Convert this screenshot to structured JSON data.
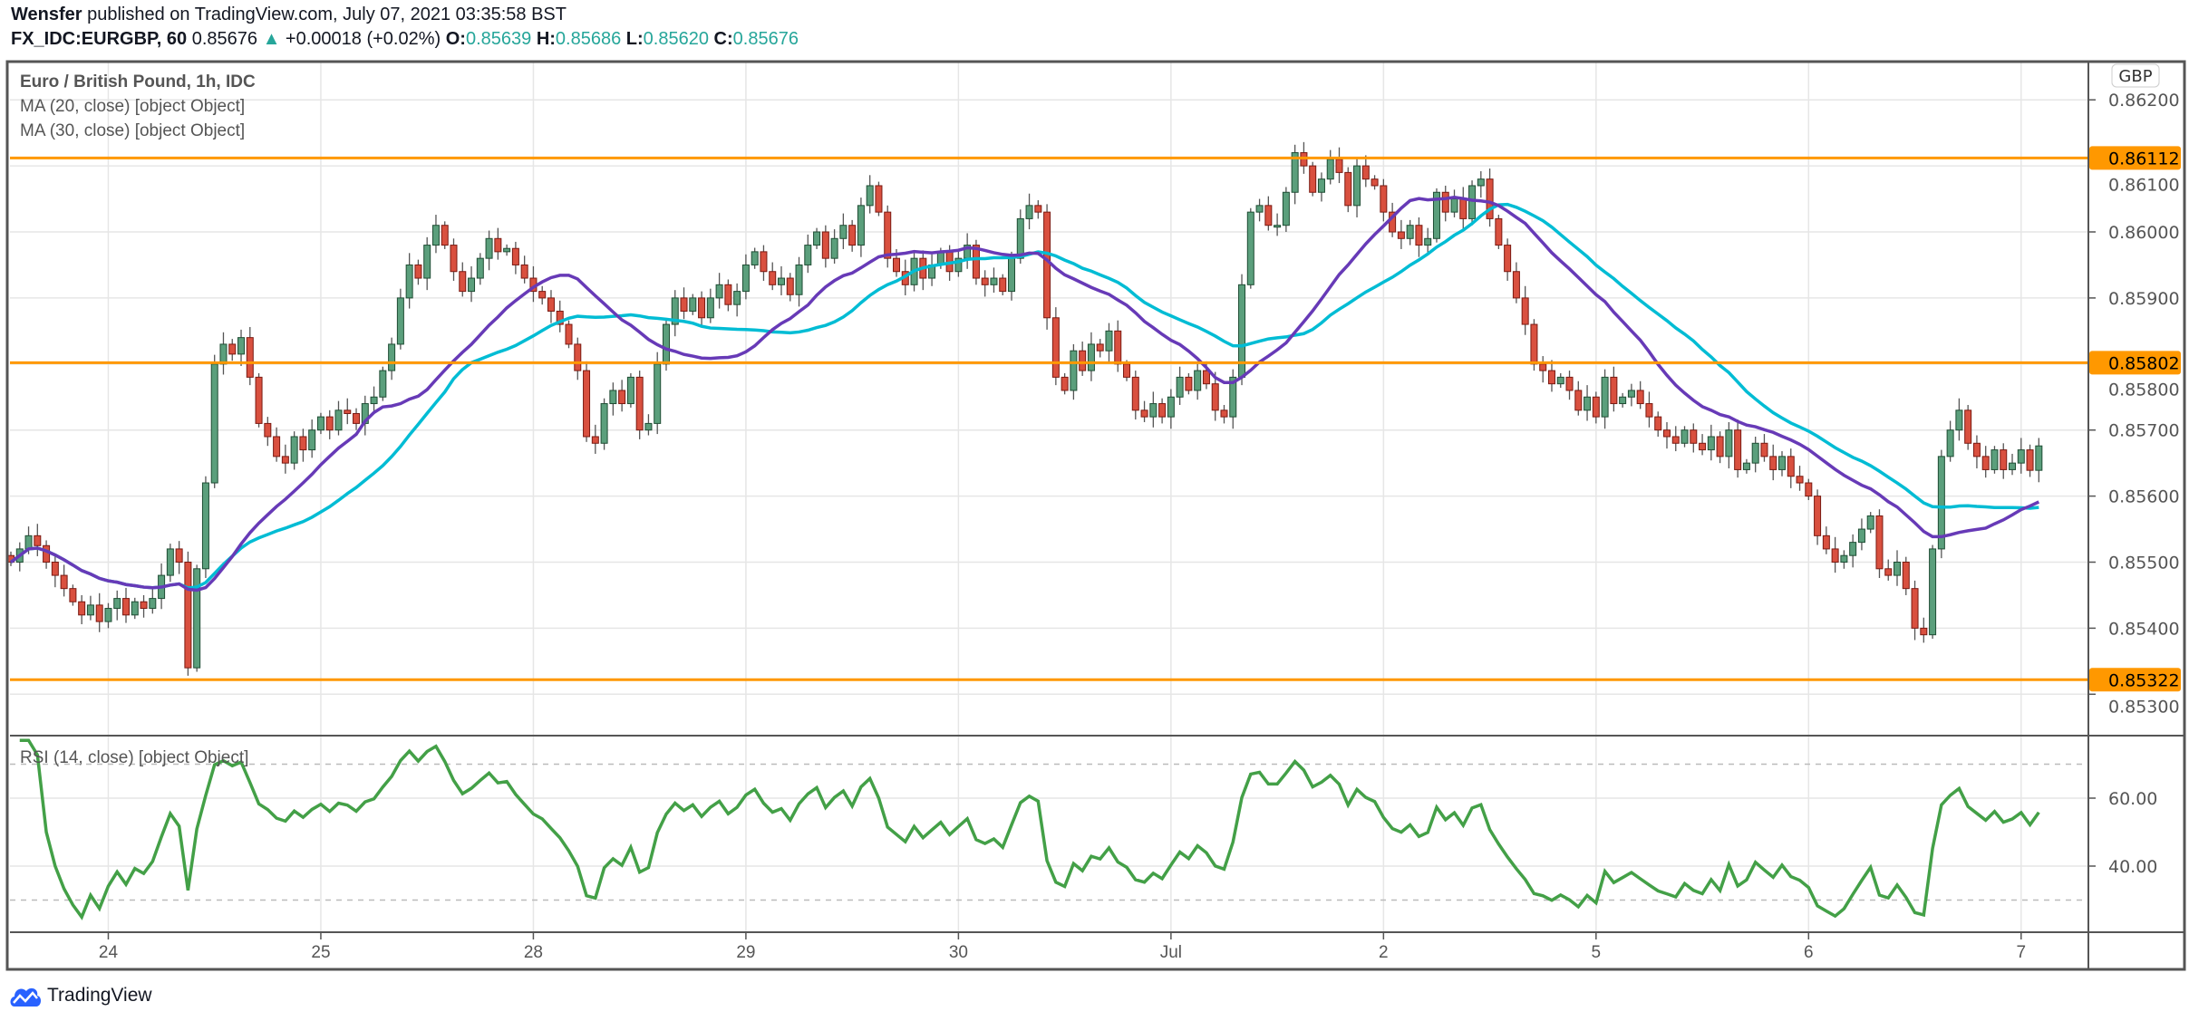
{
  "header": {
    "author": "Wensfer",
    "published": "published on TradingView.com, July 07, 2021 03:35:58 BST",
    "symbol": "FX_IDC:EURGBP, 60",
    "last": "0.85676",
    "change": "+0.00018 (+0.02%)",
    "o_label": "O:",
    "o": "0.85639",
    "h_label": "H:",
    "h": "0.85686",
    "l_label": "L:",
    "l": "0.85620",
    "c_label": "C:",
    "c": "0.85676"
  },
  "legend": {
    "title": "Euro / British Pound, 1h, IDC",
    "ma20": "MA (20, close) [object Object]",
    "ma30": "MA (30, close) [object Object]",
    "rsi": "RSI (14, close) [object Object]"
  },
  "currency": "GBP",
  "branding": "TradingView",
  "colors": {
    "up": "#5b9f7c",
    "up_border": "#1f4d34",
    "down": "#d9503f",
    "down_border": "#7a1a12",
    "ma20": "#673ab7",
    "ma30": "#00bcd4",
    "level": "#ff9800",
    "rsi": "#43a047",
    "grid": "#e6e6e6"
  },
  "chart_data": [
    {
      "type": "candlestick",
      "title": "Euro / British Pound, 1h, IDC",
      "ylim": [
        0.8524,
        0.8625
      ],
      "yticks": [
        "0.86200",
        "0.86100",
        "0.86000",
        "0.85900",
        "0.85800",
        "0.85700",
        "0.85600",
        "0.85500",
        "0.85400",
        "0.85300"
      ],
      "ytick_values": [
        0.862,
        0.861,
        0.86,
        0.859,
        0.858,
        0.857,
        0.856,
        0.855,
        0.854,
        0.853
      ],
      "xtick_labels": [
        "24",
        "25",
        "28",
        "29",
        "30",
        "Jul",
        "2",
        "5",
        "6",
        "7"
      ],
      "xtick_bars": [
        11,
        35,
        59,
        83,
        107,
        131,
        155,
        179,
        203,
        227
      ],
      "levels": [
        {
          "value": 0.86112,
          "label": "0.86112"
        },
        {
          "value": 0.85802,
          "label": "0.85802"
        },
        {
          "value": 0.85322,
          "label": "0.85322"
        }
      ],
      "moving_averages": [
        {
          "name": "MA 20",
          "period": 20
        },
        {
          "name": "MA 30",
          "period": 30
        }
      ],
      "close": [
        0.855,
        0.8552,
        0.8554,
        0.85525,
        0.855,
        0.8548,
        0.8546,
        0.8544,
        0.8542,
        0.85435,
        0.8541,
        0.8543,
        0.85445,
        0.8542,
        0.8544,
        0.8543,
        0.85445,
        0.8548,
        0.8552,
        0.855,
        0.8534,
        0.8549,
        0.8562,
        0.858,
        0.8583,
        0.85815,
        0.8584,
        0.8578,
        0.8571,
        0.8569,
        0.8566,
        0.8565,
        0.8569,
        0.8567,
        0.857,
        0.8572,
        0.857,
        0.8573,
        0.85725,
        0.8571,
        0.8574,
        0.8575,
        0.8579,
        0.8583,
        0.859,
        0.8595,
        0.8593,
        0.8598,
        0.8601,
        0.8598,
        0.8594,
        0.8591,
        0.8593,
        0.8596,
        0.8599,
        0.8597,
        0.85975,
        0.8595,
        0.8593,
        0.8591,
        0.859,
        0.8588,
        0.8586,
        0.8583,
        0.8579,
        0.8569,
        0.8568,
        0.8574,
        0.8576,
        0.8574,
        0.8578,
        0.857,
        0.8571,
        0.858,
        0.8586,
        0.859,
        0.8588,
        0.859,
        0.8587,
        0.859,
        0.8592,
        0.8589,
        0.8591,
        0.8595,
        0.8597,
        0.8594,
        0.8592,
        0.8593,
        0.85905,
        0.8595,
        0.8598,
        0.86,
        0.8596,
        0.8599,
        0.8601,
        0.8598,
        0.8604,
        0.8607,
        0.8603,
        0.8596,
        0.8594,
        0.8592,
        0.8596,
        0.8593,
        0.8595,
        0.8597,
        0.8594,
        0.8596,
        0.8598,
        0.8593,
        0.8592,
        0.8593,
        0.8591,
        0.8596,
        0.8602,
        0.8604,
        0.8603,
        0.8587,
        0.8578,
        0.8576,
        0.8582,
        0.8579,
        0.8583,
        0.8582,
        0.8585,
        0.858,
        0.8578,
        0.8573,
        0.8572,
        0.8574,
        0.8572,
        0.8575,
        0.8578,
        0.8576,
        0.8579,
        0.8577,
        0.8573,
        0.8572,
        0.8578,
        0.8592,
        0.8603,
        0.8604,
        0.8601,
        0.8601,
        0.8606,
        0.8612,
        0.861,
        0.8606,
        0.8608,
        0.8611,
        0.8609,
        0.8604,
        0.861,
        0.8608,
        0.8607,
        0.8603,
        0.86,
        0.8599,
        0.8601,
        0.8598,
        0.8599,
        0.8606,
        0.8603,
        0.8605,
        0.8602,
        0.8607,
        0.8608,
        0.8602,
        0.8598,
        0.8594,
        0.859,
        0.8586,
        0.858,
        0.8579,
        0.8577,
        0.8578,
        0.8576,
        0.8573,
        0.8575,
        0.8572,
        0.8578,
        0.8574,
        0.8575,
        0.8576,
        0.8574,
        0.8572,
        0.857,
        0.8569,
        0.8568,
        0.857,
        0.8568,
        0.8567,
        0.8569,
        0.8566,
        0.857,
        0.8564,
        0.8565,
        0.8568,
        0.8566,
        0.8564,
        0.8566,
        0.8563,
        0.8562,
        0.856,
        0.8554,
        0.8552,
        0.855,
        0.8551,
        0.8553,
        0.8555,
        0.8557,
        0.8549,
        0.8548,
        0.855,
        0.8546,
        0.854,
        0.8539,
        0.8552,
        0.8566,
        0.857,
        0.8573,
        0.8568,
        0.8566,
        0.8564,
        0.8567,
        0.8564,
        0.8565,
        0.8567,
        0.85639,
        0.85676
      ]
    },
    {
      "type": "line",
      "title": "RSI (14, close) [object Object]",
      "period": 14,
      "ylim": [
        23,
        77
      ],
      "yticks": [
        "60.00",
        "40.00"
      ],
      "ytick_values": [
        60,
        40
      ],
      "bands": [
        70,
        30
      ]
    }
  ]
}
